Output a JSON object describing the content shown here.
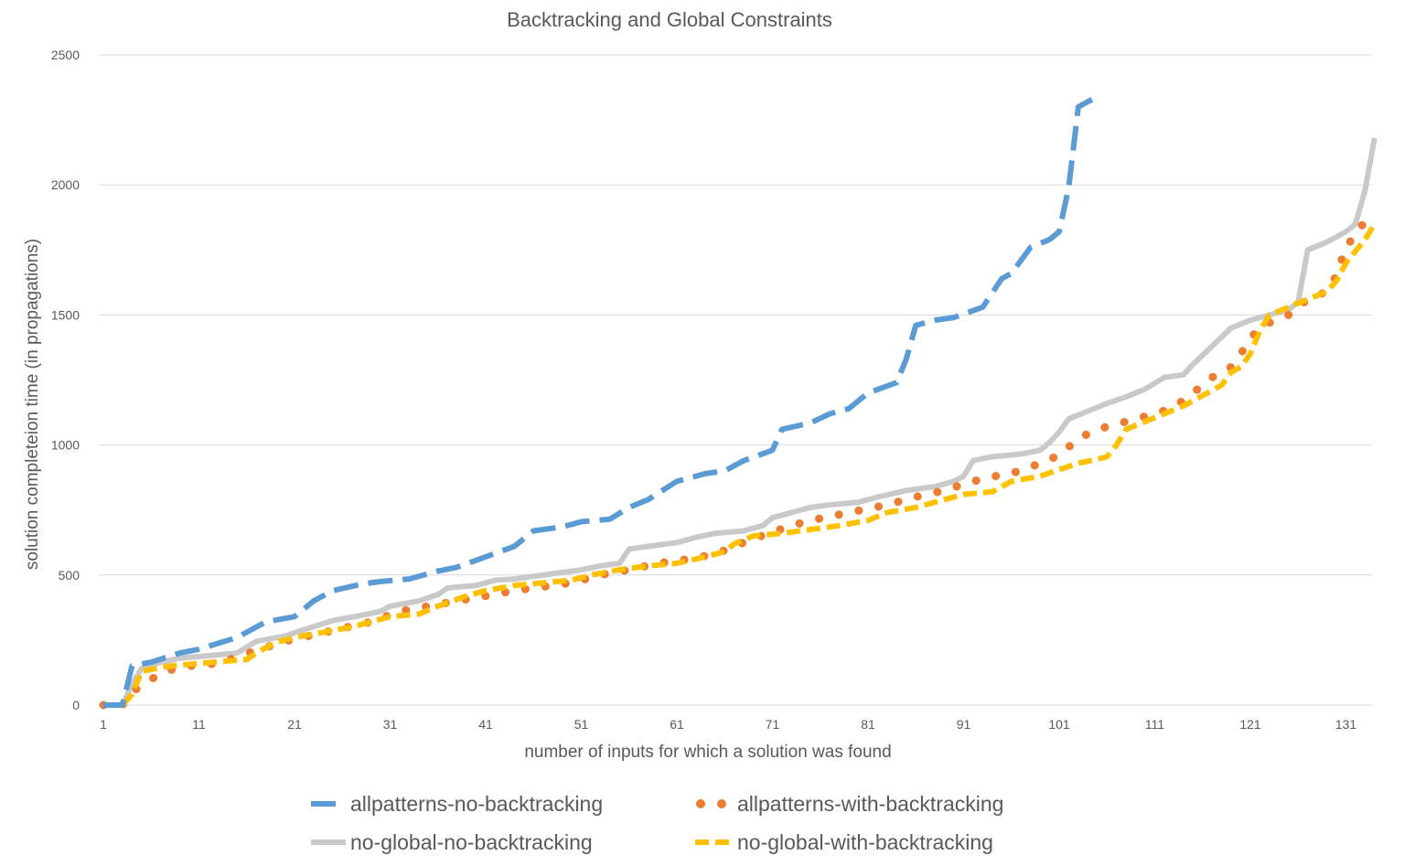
{
  "chart_data": {
    "type": "line",
    "title": "Backtracking and Global Constraints",
    "xlabel": "number of inputs for which a solution was found",
    "ylabel": "solution completeion time (in propagations)",
    "x_tick_labels": [
      "1",
      "11",
      "21",
      "31",
      "41",
      "51",
      "61",
      "71",
      "81",
      "91",
      "101",
      "111",
      "121",
      "131"
    ],
    "y_tick_labels": [
      "0",
      "500",
      "1000",
      "1500",
      "2000",
      "2500"
    ],
    "xlim": [
      1,
      134
    ],
    "ylim": [
      0,
      2500
    ],
    "grid": "horizontal",
    "legend_position": "bottom",
    "series": [
      {
        "name": "allpatterns-no-backtracking",
        "color": "#5B9BD5",
        "style": "dash",
        "points": [
          [
            1,
            0
          ],
          [
            3,
            0
          ],
          [
            4,
            150
          ],
          [
            6,
            165
          ],
          [
            9,
            200
          ],
          [
            11,
            215
          ],
          [
            15,
            260
          ],
          [
            18,
            320
          ],
          [
            21,
            340
          ],
          [
            23,
            400
          ],
          [
            25,
            440
          ],
          [
            28,
            465
          ],
          [
            30,
            475
          ],
          [
            33,
            485
          ],
          [
            36,
            515
          ],
          [
            38,
            530
          ],
          [
            41,
            570
          ],
          [
            44,
            610
          ],
          [
            46,
            670
          ],
          [
            49,
            685
          ],
          [
            51,
            705
          ],
          [
            54,
            715
          ],
          [
            56,
            760
          ],
          [
            58,
            790
          ],
          [
            61,
            860
          ],
          [
            64,
            890
          ],
          [
            66,
            900
          ],
          [
            68,
            940
          ],
          [
            71,
            980
          ],
          [
            72,
            1060
          ],
          [
            75,
            1085
          ],
          [
            77,
            1120
          ],
          [
            79,
            1140
          ],
          [
            81,
            1200
          ],
          [
            84,
            1240
          ],
          [
            85,
            1330
          ],
          [
            86,
            1460
          ],
          [
            88,
            1480
          ],
          [
            90,
            1490
          ],
          [
            93,
            1530
          ],
          [
            95,
            1640
          ],
          [
            96,
            1660
          ],
          [
            98,
            1760
          ],
          [
            100,
            1790
          ],
          [
            101,
            1820
          ],
          [
            102,
            1990
          ],
          [
            103,
            2300
          ],
          [
            105,
            2340
          ]
        ]
      },
      {
        "name": "allpatterns-with-backtracking",
        "color": "#ED7D31",
        "style": "dot",
        "points": [
          [
            1,
            0
          ],
          [
            3,
            0
          ],
          [
            4,
            50
          ],
          [
            6,
            100
          ],
          [
            8,
            135
          ],
          [
            10,
            150
          ],
          [
            13,
            160
          ],
          [
            15,
            185
          ],
          [
            17,
            210
          ],
          [
            20,
            245
          ],
          [
            23,
            270
          ],
          [
            26,
            295
          ],
          [
            29,
            320
          ],
          [
            32,
            360
          ],
          [
            35,
            380
          ],
          [
            38,
            400
          ],
          [
            41,
            420
          ],
          [
            44,
            440
          ],
          [
            47,
            455
          ],
          [
            50,
            470
          ],
          [
            53,
            500
          ],
          [
            56,
            520
          ],
          [
            59,
            545
          ],
          [
            62,
            560
          ],
          [
            65,
            580
          ],
          [
            67,
            610
          ],
          [
            69,
            640
          ],
          [
            71,
            665
          ],
          [
            73,
            690
          ],
          [
            75,
            710
          ],
          [
            77,
            725
          ],
          [
            79,
            740
          ],
          [
            81,
            755
          ],
          [
            83,
            770
          ],
          [
            85,
            790
          ],
          [
            87,
            810
          ],
          [
            89,
            825
          ],
          [
            91,
            850
          ],
          [
            93,
            870
          ],
          [
            95,
            885
          ],
          [
            97,
            900
          ],
          [
            99,
            930
          ],
          [
            101,
            960
          ],
          [
            103,
            1025
          ],
          [
            105,
            1060
          ],
          [
            107,
            1080
          ],
          [
            109,
            1100
          ],
          [
            111,
            1120
          ],
          [
            113,
            1145
          ],
          [
            115,
            1200
          ],
          [
            117,
            1260
          ],
          [
            119,
            1300
          ],
          [
            120,
            1350
          ],
          [
            121,
            1410
          ],
          [
            122,
            1450
          ],
          [
            123,
            1470
          ],
          [
            125,
            1500
          ],
          [
            127,
            1560
          ],
          [
            129,
            1590
          ],
          [
            130,
            1650
          ],
          [
            131,
            1760
          ],
          [
            132,
            1810
          ],
          [
            133,
            1860
          ]
        ]
      },
      {
        "name": "no-global-no-backtracking",
        "color": "#C9C9C9",
        "style": "solid",
        "points": [
          [
            1,
            0
          ],
          [
            3,
            0
          ],
          [
            4,
            80
          ],
          [
            5,
            140
          ],
          [
            7,
            165
          ],
          [
            9,
            180
          ],
          [
            12,
            190
          ],
          [
            15,
            200
          ],
          [
            17,
            245
          ],
          [
            20,
            265
          ],
          [
            22,
            290
          ],
          [
            25,
            325
          ],
          [
            28,
            345
          ],
          [
            30,
            360
          ],
          [
            31,
            380
          ],
          [
            34,
            400
          ],
          [
            36,
            425
          ],
          [
            37,
            450
          ],
          [
            40,
            460
          ],
          [
            42,
            480
          ],
          [
            44,
            485
          ],
          [
            46,
            495
          ],
          [
            49,
            510
          ],
          [
            51,
            520
          ],
          [
            53,
            535
          ],
          [
            55,
            545
          ],
          [
            56,
            600
          ],
          [
            58,
            610
          ],
          [
            61,
            625
          ],
          [
            63,
            645
          ],
          [
            65,
            660
          ],
          [
            68,
            670
          ],
          [
            70,
            690
          ],
          [
            71,
            720
          ],
          [
            73,
            740
          ],
          [
            75,
            760
          ],
          [
            77,
            770
          ],
          [
            80,
            780
          ],
          [
            82,
            800
          ],
          [
            85,
            825
          ],
          [
            88,
            840
          ],
          [
            90,
            860
          ],
          [
            91,
            880
          ],
          [
            92,
            940
          ],
          [
            94,
            955
          ],
          [
            97,
            965
          ],
          [
            99,
            980
          ],
          [
            100,
            1010
          ],
          [
            101,
            1050
          ],
          [
            102,
            1100
          ],
          [
            104,
            1130
          ],
          [
            106,
            1160
          ],
          [
            108,
            1185
          ],
          [
            110,
            1215
          ],
          [
            112,
            1260
          ],
          [
            114,
            1270
          ],
          [
            115,
            1310
          ],
          [
            117,
            1380
          ],
          [
            119,
            1450
          ],
          [
            121,
            1480
          ],
          [
            123,
            1500
          ],
          [
            125,
            1520
          ],
          [
            126,
            1550
          ],
          [
            127,
            1750
          ],
          [
            129,
            1780
          ],
          [
            130,
            1800
          ],
          [
            131,
            1820
          ],
          [
            132,
            1850
          ],
          [
            133,
            1980
          ],
          [
            134,
            2180
          ]
        ]
      },
      {
        "name": "no-global-with-backtracking",
        "color": "#FFC000",
        "style": "dash",
        "points": [
          [
            1,
            0
          ],
          [
            3,
            0
          ],
          [
            4,
            40
          ],
          [
            5,
            130
          ],
          [
            8,
            150
          ],
          [
            11,
            160
          ],
          [
            14,
            170
          ],
          [
            16,
            175
          ],
          [
            17,
            200
          ],
          [
            19,
            240
          ],
          [
            21,
            260
          ],
          [
            24,
            280
          ],
          [
            27,
            300
          ],
          [
            29,
            320
          ],
          [
            31,
            340
          ],
          [
            34,
            350
          ],
          [
            36,
            380
          ],
          [
            39,
            420
          ],
          [
            41,
            440
          ],
          [
            44,
            460
          ],
          [
            47,
            470
          ],
          [
            50,
            480
          ],
          [
            52,
            500
          ],
          [
            55,
            520
          ],
          [
            58,
            535
          ],
          [
            61,
            545
          ],
          [
            64,
            570
          ],
          [
            66,
            590
          ],
          [
            67,
            620
          ],
          [
            69,
            650
          ],
          [
            72,
            660
          ],
          [
            75,
            675
          ],
          [
            78,
            690
          ],
          [
            81,
            710
          ],
          [
            83,
            740
          ],
          [
            86,
            760
          ],
          [
            89,
            790
          ],
          [
            91,
            810
          ],
          [
            94,
            820
          ],
          [
            96,
            860
          ],
          [
            99,
            880
          ],
          [
            101,
            905
          ],
          [
            103,
            930
          ],
          [
            105,
            945
          ],
          [
            106,
            955
          ],
          [
            107,
            1000
          ],
          [
            108,
            1060
          ],
          [
            110,
            1090
          ],
          [
            112,
            1120
          ],
          [
            114,
            1150
          ],
          [
            116,
            1190
          ],
          [
            118,
            1230
          ],
          [
            119,
            1280
          ],
          [
            120,
            1300
          ],
          [
            121,
            1350
          ],
          [
            122,
            1440
          ],
          [
            123,
            1500
          ],
          [
            125,
            1530
          ],
          [
            127,
            1560
          ],
          [
            129,
            1590
          ],
          [
            130,
            1630
          ],
          [
            131,
            1700
          ],
          [
            133,
            1790
          ],
          [
            134,
            1850
          ]
        ]
      }
    ]
  }
}
